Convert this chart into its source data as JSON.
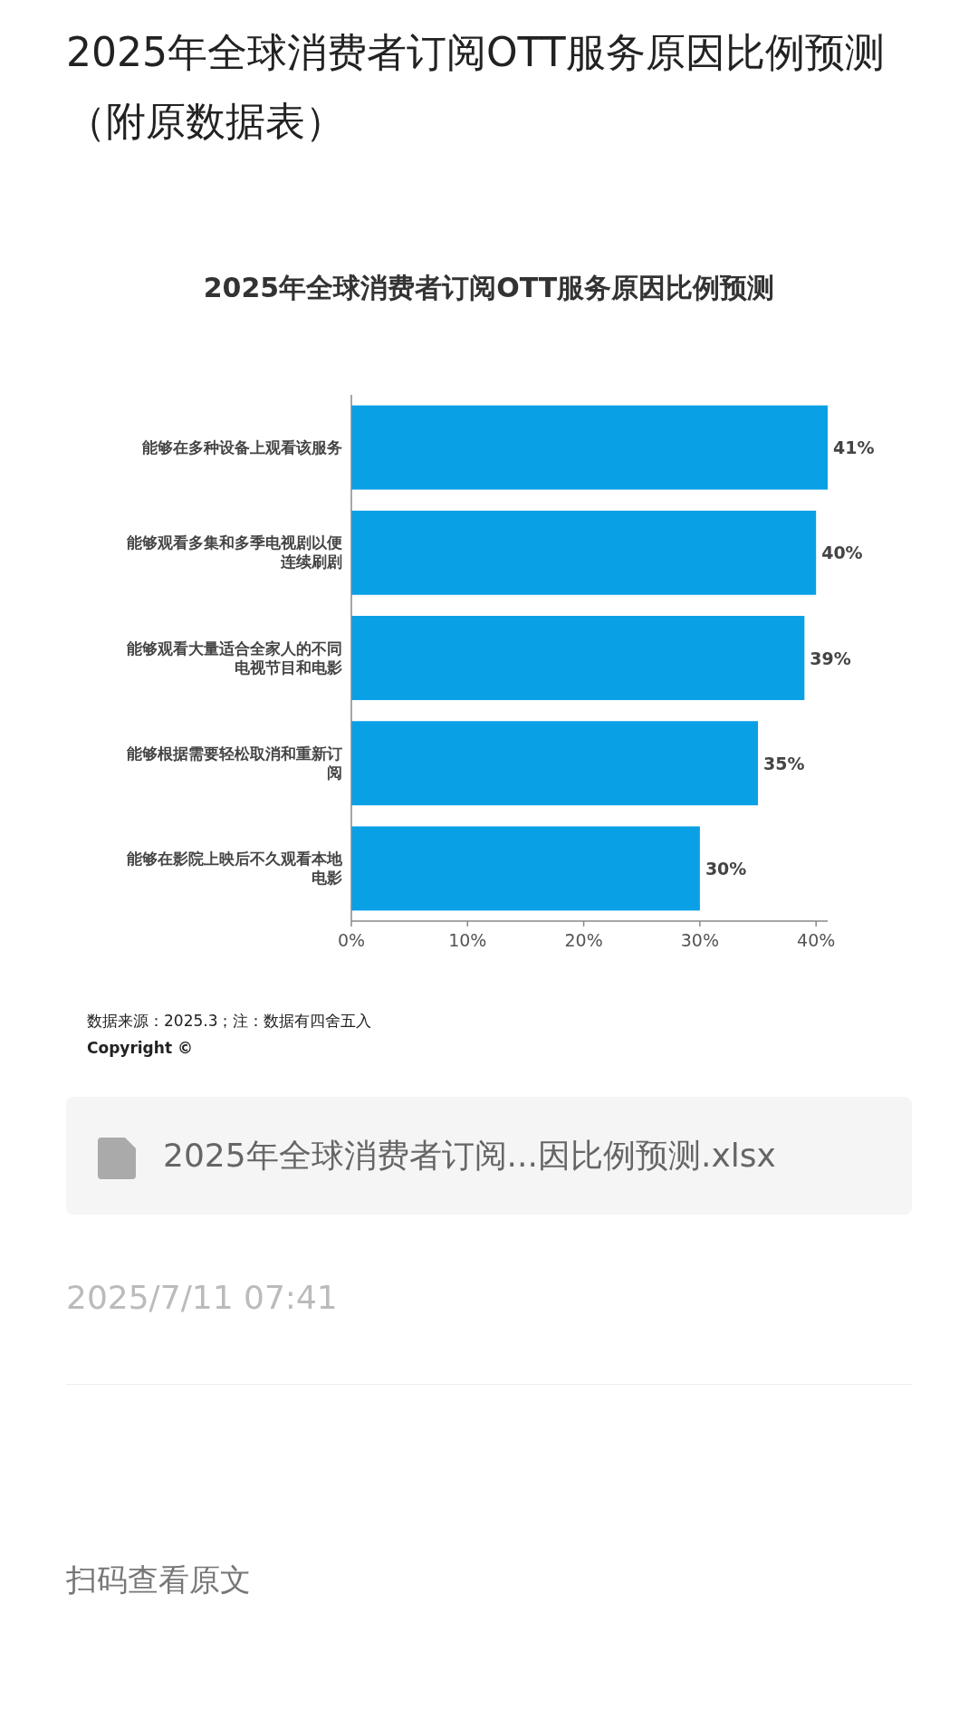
{
  "chart_data": {
    "type": "bar",
    "orientation": "horizontal",
    "title": "2025年全球消费者订阅OTT服务原因比例预测（附原数据表）",
    "subtitle": "2025年全球消费者订阅OTT服务原因比例预测",
    "categories": [
      "能够在多种设备上观看该服务",
      "能够观看多集和多季电视剧以便连续刷剧",
      "能够观看大量适合全家人的不同电视节目和电影",
      "能够根据需要轻松取消和重新订阅",
      "能够在影院上映后不久观看本地电影"
    ],
    "values": [
      41,
      40,
      39,
      35,
      30
    ],
    "value_labels": [
      "41%",
      "40%",
      "39%",
      "35%",
      "30%"
    ],
    "color": "#0aa0e6",
    "xlim": [
      0,
      41
    ],
    "xticks": [
      {
        "value": 0,
        "label": "0%"
      },
      {
        "value": 10,
        "label": "10%"
      },
      {
        "value": 20,
        "label": "20%"
      },
      {
        "value": 30,
        "label": "30%"
      },
      {
        "value": 40,
        "label": "40%"
      }
    ],
    "annotations": [
      "数据来源：2025.3；注：数据有四舍五入",
      "Copyright ©",
      "2025年全球消费者订阅...因比例预测.xlsx",
      "2025/7/11 07:41",
      "扫码查看原文"
    ]
  }
}
